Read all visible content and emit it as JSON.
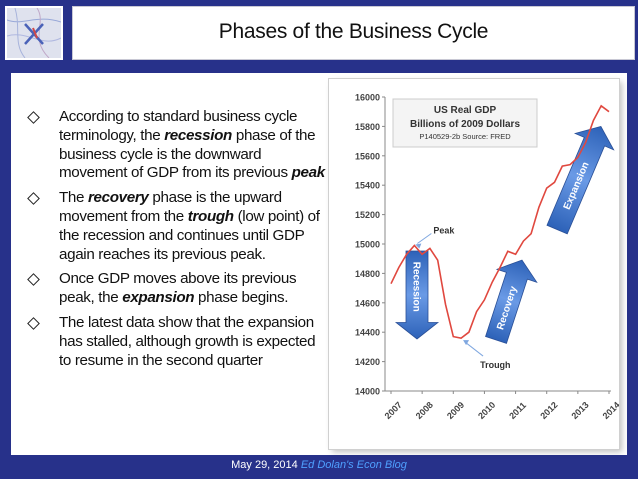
{
  "header": {
    "title": "Phases of the Business Cycle"
  },
  "bullets": [
    {
      "segments": [
        {
          "text": "According to standard business cycle terminology, the "
        },
        {
          "text": "recession",
          "em": true
        },
        {
          "text": " phase of the business cycle is the downward movement of GDP from its previous "
        },
        {
          "text": "peak",
          "em": true
        }
      ]
    },
    {
      "segments": [
        {
          "text": "The "
        },
        {
          "text": "recovery",
          "em": true
        },
        {
          "text": " phase is the upward movement from the "
        },
        {
          "text": "trough",
          "em": true
        },
        {
          "text": " (low point) of the recession and continues until GDP again reaches its previous peak."
        }
      ]
    },
    {
      "segments": [
        {
          "text": "Once GDP moves above its previous peak, the "
        },
        {
          "text": "expansion",
          "em": true
        },
        {
          "text": " phase begins."
        }
      ]
    },
    {
      "segments": [
        {
          "text": "The latest data show that the expansion has stalled, although growth is expected to resume in the second quarter"
        }
      ]
    }
  ],
  "footer": {
    "date": "May 29, 2014",
    "blog": "Ed Dolan's Econ Blog"
  },
  "chart_data": {
    "type": "line",
    "title": "US Real GDP",
    "subtitle": "Billions of 2009 Dollars",
    "source": "P140529-2b Source: FRED",
    "x_label": "",
    "y_label": "",
    "ylim": [
      14000,
      16000
    ],
    "yticks": [
      14000,
      14200,
      14400,
      14600,
      14800,
      15000,
      15200,
      15400,
      15600,
      15800,
      16000
    ],
    "xticks": [
      "2007",
      "2008",
      "2009",
      "2010",
      "2011",
      "2012",
      "2013",
      "2014"
    ],
    "grid": false,
    "line_color": "#e0483f",
    "series": [
      {
        "x": [
          "2007-Q1",
          "2007-Q2",
          "2007-Q3",
          "2007-Q4",
          "2008-Q1",
          "2008-Q2",
          "2008-Q3",
          "2008-Q4",
          "2009-Q1",
          "2009-Q2",
          "2009-Q3",
          "2009-Q4",
          "2010-Q1",
          "2010-Q2",
          "2010-Q3",
          "2010-Q4",
          "2011-Q1",
          "2011-Q2",
          "2011-Q3",
          "2011-Q4",
          "2012-Q1",
          "2012-Q2",
          "2012-Q3",
          "2012-Q4",
          "2013-Q1",
          "2013-Q2",
          "2013-Q3",
          "2013-Q4",
          "2014-Q1"
        ],
        "values": [
          14730,
          14840,
          14930,
          14990,
          14930,
          14970,
          14890,
          14590,
          14370,
          14360,
          14400,
          14540,
          14620,
          14740,
          14840,
          14950,
          14930,
          15020,
          15070,
          15250,
          15380,
          15420,
          15530,
          15540,
          15590,
          15690,
          15840,
          15940,
          15900
        ]
      }
    ],
    "annotations": [
      {
        "text": "Peak",
        "x": "2007-Q4",
        "value": 14990
      },
      {
        "text": "Trough",
        "x": "2009-Q2",
        "value": 14360
      }
    ],
    "arrows": [
      {
        "label": "Recession",
        "color": "#4b7fd3"
      },
      {
        "label": "Recovery",
        "color": "#4b7fd3"
      },
      {
        "label": "Expansion",
        "color": "#4b7fd3"
      }
    ]
  }
}
